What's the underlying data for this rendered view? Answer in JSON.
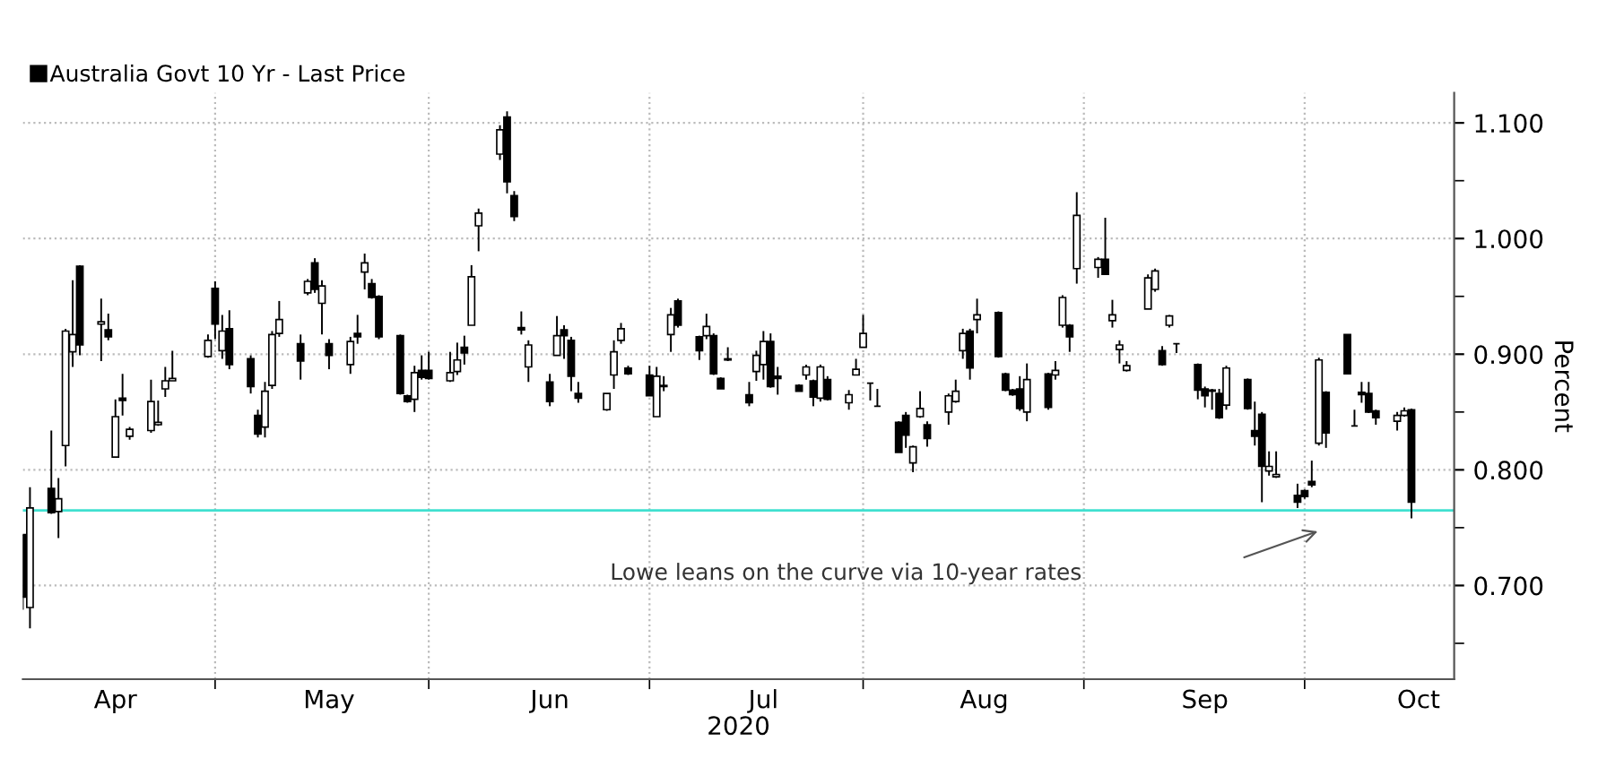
{
  "chart_data": {
    "type": "candlestick",
    "x": [
      "2020-03-19",
      "2020-03-20",
      "2020-03-23",
      "2020-03-24",
      "2020-03-25",
      "2020-03-26",
      "2020-03-27",
      "2020-03-30",
      "2020-03-31",
      "2020-04-01",
      "2020-04-02",
      "2020-04-03",
      "2020-04-06",
      "2020-04-07",
      "2020-04-08",
      "2020-04-09",
      "2020-04-14",
      "2020-04-15",
      "2020-04-16",
      "2020-04-17",
      "2020-04-20",
      "2020-04-21",
      "2020-04-22",
      "2020-04-23",
      "2020-04-24",
      "2020-04-27",
      "2020-04-28",
      "2020-04-29",
      "2020-04-30",
      "2020-05-01",
      "2020-05-04",
      "2020-05-05",
      "2020-05-06",
      "2020-05-07",
      "2020-05-08",
      "2020-05-11",
      "2020-05-12",
      "2020-05-13",
      "2020-05-14",
      "2020-05-15",
      "2020-05-18",
      "2020-05-19",
      "2020-05-20",
      "2020-05-21",
      "2020-05-22",
      "2020-05-25",
      "2020-05-26",
      "2020-05-27",
      "2020-05-28",
      "2020-05-29",
      "2020-06-01",
      "2020-06-02",
      "2020-06-03",
      "2020-06-04",
      "2020-06-05",
      "2020-06-09",
      "2020-06-10",
      "2020-06-11",
      "2020-06-12",
      "2020-06-15",
      "2020-06-16",
      "2020-06-17",
      "2020-06-18",
      "2020-06-19",
      "2020-06-22",
      "2020-06-23",
      "2020-06-24",
      "2020-06-25",
      "2020-06-26",
      "2020-06-29",
      "2020-06-30",
      "2020-07-01",
      "2020-07-02",
      "2020-07-03",
      "2020-07-06",
      "2020-07-07",
      "2020-07-08",
      "2020-07-09",
      "2020-07-10",
      "2020-07-13",
      "2020-07-14",
      "2020-07-15",
      "2020-07-16",
      "2020-07-17",
      "2020-07-20",
      "2020-07-21",
      "2020-07-22",
      "2020-07-23",
      "2020-07-24",
      "2020-07-27",
      "2020-07-28",
      "2020-07-29",
      "2020-07-30",
      "2020-07-31",
      "2020-08-03",
      "2020-08-04",
      "2020-08-05",
      "2020-08-06",
      "2020-08-07",
      "2020-08-10",
      "2020-08-11",
      "2020-08-12",
      "2020-08-13",
      "2020-08-14",
      "2020-08-17",
      "2020-08-18",
      "2020-08-19",
      "2020-08-20",
      "2020-08-21",
      "2020-08-24",
      "2020-08-25",
      "2020-08-26",
      "2020-08-27",
      "2020-08-28",
      "2020-08-31",
      "2020-09-01",
      "2020-09-02",
      "2020-09-03",
      "2020-09-04",
      "2020-09-07",
      "2020-09-08",
      "2020-09-09",
      "2020-09-10",
      "2020-09-11",
      "2020-09-14",
      "2020-09-15",
      "2020-09-16",
      "2020-09-17",
      "2020-09-18",
      "2020-09-21",
      "2020-09-22",
      "2020-09-23",
      "2020-09-24",
      "2020-09-25",
      "2020-09-28",
      "2020-09-29",
      "2020-09-30"
    ],
    "series": [
      {
        "name": "Australia Govt 10 Yr - Last Price",
        "color": "#000000",
        "ohlc": [
          [
            0.744,
            0.744,
            0.679,
            0.69
          ],
          [
            0.681,
            0.785,
            0.663,
            0.767
          ],
          [
            0.784,
            0.834,
            0.762,
            0.763
          ],
          [
            0.764,
            0.793,
            0.741,
            0.775
          ],
          [
            0.821,
            0.922,
            0.803,
            0.92
          ],
          [
            0.902,
            0.964,
            0.889,
            0.917
          ],
          [
            0.976,
            0.977,
            0.899,
            0.908
          ],
          [
            0.926,
            0.948,
            0.894,
            0.928
          ],
          [
            0.921,
            0.935,
            0.912,
            0.915
          ],
          [
            0.811,
            0.861,
            0.811,
            0.846
          ],
          [
            0.862,
            0.883,
            0.847,
            0.86
          ],
          [
            0.829,
            0.837,
            0.826,
            0.835
          ],
          [
            0.834,
            0.878,
            0.832,
            0.859
          ],
          [
            0.839,
            0.86,
            0.838,
            0.841
          ],
          [
            0.87,
            0.889,
            0.863,
            0.877
          ],
          [
            0.877,
            0.903,
            0.877,
            0.879
          ],
          [
            0.898,
            0.917,
            0.897,
            0.912
          ],
          [
            0.957,
            0.963,
            0.913,
            0.926
          ],
          [
            0.903,
            0.934,
            0.896,
            0.92
          ],
          [
            0.922,
            0.938,
            0.887,
            0.891
          ],
          [
            0.896,
            0.899,
            0.866,
            0.872
          ],
          [
            0.847,
            0.852,
            0.828,
            0.831
          ],
          [
            0.837,
            0.876,
            0.828,
            0.868
          ],
          [
            0.873,
            0.92,
            0.87,
            0.917
          ],
          [
            0.918,
            0.946,
            0.915,
            0.93
          ],
          [
            0.909,
            0.917,
            0.878,
            0.894
          ],
          [
            0.953,
            0.965,
            0.951,
            0.963
          ],
          [
            0.979,
            0.983,
            0.953,
            0.956
          ],
          [
            0.944,
            0.964,
            0.917,
            0.959
          ],
          [
            0.909,
            0.913,
            0.887,
            0.899
          ],
          [
            0.891,
            0.915,
            0.883,
            0.911
          ],
          [
            0.918,
            0.934,
            0.909,
            0.915
          ],
          [
            0.971,
            0.987,
            0.956,
            0.979
          ],
          [
            0.961,
            0.965,
            0.948,
            0.949
          ],
          [
            0.95,
            0.951,
            0.913,
            0.915
          ],
          [
            0.916,
            0.917,
            0.865,
            0.866
          ],
          [
            0.864,
            0.865,
            0.858,
            0.859
          ],
          [
            0.861,
            0.89,
            0.85,
            0.884
          ],
          [
            0.886,
            0.899,
            0.878,
            0.88
          ],
          [
            0.886,
            0.902,
            0.878,
            0.879
          ],
          [
            0.877,
            0.902,
            0.876,
            0.884
          ],
          [
            0.885,
            0.91,
            0.882,
            0.895
          ],
          [
            0.906,
            0.916,
            0.891,
            0.901
          ],
          [
            0.925,
            0.977,
            0.925,
            0.967
          ],
          [
            1.011,
            1.026,
            0.989,
            1.022
          ],
          [
            1.073,
            1.098,
            1.068,
            1.094
          ],
          [
            1.105,
            1.11,
            1.039,
            1.049
          ],
          [
            1.037,
            1.041,
            1.015,
            1.019
          ],
          [
            0.923,
            0.937,
            0.917,
            0.921
          ],
          [
            0.889,
            0.912,
            0.876,
            0.908
          ],
          [
            0.876,
            0.883,
            0.855,
            0.859
          ],
          [
            0.899,
            0.933,
            0.899,
            0.916
          ],
          [
            0.921,
            0.925,
            0.896,
            0.916
          ],
          [
            0.912,
            0.915,
            0.868,
            0.881
          ],
          [
            0.866,
            0.876,
            0.858,
            0.862
          ],
          [
            0.852,
            0.866,
            0.851,
            0.866
          ],
          [
            0.882,
            0.912,
            0.87,
            0.902
          ],
          [
            0.912,
            0.927,
            0.909,
            0.922
          ],
          [
            0.888,
            0.89,
            0.882,
            0.883
          ],
          [
            0.882,
            0.89,
            0.864,
            0.864
          ],
          [
            0.846,
            0.889,
            0.846,
            0.881
          ],
          [
            0.872,
            0.881,
            0.868,
            0.873
          ],
          [
            0.917,
            0.94,
            0.902,
            0.934
          ],
          [
            0.946,
            0.948,
            0.923,
            0.925
          ],
          [
            0.915,
            0.916,
            0.895,
            0.903
          ],
          [
            0.916,
            0.935,
            0.913,
            0.924
          ],
          [
            0.916,
            0.918,
            0.882,
            0.883
          ],
          [
            0.879,
            0.88,
            0.87,
            0.87
          ],
          [
            0.896,
            0.906,
            0.894,
            0.895
          ],
          [
            0.865,
            0.876,
            0.855,
            0.858
          ],
          [
            0.885,
            0.903,
            0.877,
            0.899
          ],
          [
            0.891,
            0.92,
            0.878,
            0.911
          ],
          [
            0.911,
            0.918,
            0.871,
            0.872
          ],
          [
            0.881,
            0.889,
            0.865,
            0.879
          ],
          [
            0.873,
            0.874,
            0.868,
            0.868
          ],
          [
            0.882,
            0.891,
            0.878,
            0.889
          ],
          [
            0.877,
            0.878,
            0.855,
            0.863
          ],
          [
            0.862,
            0.891,
            0.859,
            0.889
          ],
          [
            0.878,
            0.881,
            0.86,
            0.861
          ],
          [
            0.858,
            0.869,
            0.852,
            0.865
          ],
          [
            0.882,
            0.896,
            0.882,
            0.887
          ],
          [
            0.906,
            0.934,
            0.906,
            0.918
          ],
          [
            0.875,
            0.875,
            0.86,
            0.875
          ],
          [
            0.855,
            0.87,
            0.855,
            0.855
          ],
          [
            0.841,
            0.842,
            0.815,
            0.815
          ],
          [
            0.847,
            0.85,
            0.819,
            0.83
          ],
          [
            0.806,
            0.821,
            0.798,
            0.82
          ],
          [
            0.846,
            0.868,
            0.845,
            0.853
          ],
          [
            0.839,
            0.842,
            0.82,
            0.827
          ],
          [
            0.85,
            0.866,
            0.839,
            0.864
          ],
          [
            0.859,
            0.878,
            0.858,
            0.868
          ],
          [
            0.903,
            0.922,
            0.896,
            0.918
          ],
          [
            0.92,
            0.922,
            0.878,
            0.888
          ],
          [
            0.93,
            0.948,
            0.918,
            0.934
          ],
          [
            0.936,
            0.937,
            0.897,
            0.898
          ],
          [
            0.883,
            0.884,
            0.868,
            0.869
          ],
          [
            0.869,
            0.87,
            0.864,
            0.865
          ],
          [
            0.87,
            0.881,
            0.851,
            0.853
          ],
          [
            0.85,
            0.892,
            0.842,
            0.878
          ],
          [
            0.883,
            0.884,
            0.852,
            0.854
          ],
          [
            0.882,
            0.894,
            0.878,
            0.886
          ],
          [
            0.925,
            0.951,
            0.923,
            0.949
          ],
          [
            0.925,
            0.926,
            0.902,
            0.915
          ],
          [
            0.974,
            1.04,
            0.961,
            1.02
          ],
          [
            0.975,
            0.984,
            0.966,
            0.982
          ],
          [
            0.982,
            1.018,
            0.969,
            0.969
          ],
          [
            0.929,
            0.947,
            0.923,
            0.934
          ],
          [
            0.904,
            0.912,
            0.892,
            0.908
          ],
          [
            0.886,
            0.894,
            0.885,
            0.89
          ],
          [
            0.939,
            0.969,
            0.939,
            0.966
          ],
          [
            0.956,
            0.974,
            0.954,
            0.972
          ],
          [
            0.903,
            0.907,
            0.89,
            0.891
          ],
          [
            0.925,
            0.934,
            0.923,
            0.933
          ],
          [
            0.909,
            0.909,
            0.901,
            0.909
          ],
          [
            0.891,
            0.892,
            0.861,
            0.869
          ],
          [
            0.87,
            0.872,
            0.854,
            0.864
          ],
          [
            0.869,
            0.87,
            0.852,
            0.868
          ],
          [
            0.866,
            0.87,
            0.844,
            0.845
          ],
          [
            0.856,
            0.89,
            0.852,
            0.888
          ],
          [
            0.878,
            0.879,
            0.852,
            0.853
          ],
          [
            0.834,
            0.859,
            0.821,
            0.829
          ],
          [
            0.848,
            0.85,
            0.772,
            0.803
          ],
          [
            0.799,
            0.816,
            0.795,
            0.803
          ],
          [
            0.794,
            0.816,
            0.793,
            0.796
          ],
          [
            0.778,
            0.788,
            0.767,
            0.772
          ],
          [
            0.782,
            0.783,
            0.775,
            0.777
          ],
          [
            0.79,
            0.808,
            0.785,
            0.787
          ],
          [
            0.823,
            0.897,
            0.821,
            0.895
          ],
          [
            0.867,
            0.868,
            0.819,
            0.832
          ],
          [
            0.917,
            0.917,
            0.883,
            0.883
          ],
          [
            0.838,
            0.852,
            0.838,
            0.838
          ],
          [
            0.867,
            0.876,
            0.858,
            0.865
          ],
          [
            0.866,
            0.876,
            0.849,
            0.85
          ],
          [
            0.851,
            0.852,
            0.839,
            0.845
          ],
          [
            0.842,
            0.85,
            0.834,
            0.847
          ],
          [
            0.847,
            0.854,
            0.846,
            0.851
          ],
          [
            0.852,
            0.853,
            0.758,
            0.772
          ]
        ]
      }
    ],
    "xlim": [
      "2020-03-19",
      "2020-10-06"
    ],
    "xticks": [
      {
        "value": "2020-04-01",
        "label": "Apr"
      },
      {
        "value": "2020-05-01",
        "label": "May"
      },
      {
        "value": "2020-06-01",
        "label": "Jun"
      },
      {
        "value": "2020-07-01",
        "label": "Jul"
      },
      {
        "value": "2020-08-01",
        "label": "Aug"
      },
      {
        "value": "2020-09-01",
        "label": "Sep"
      },
      {
        "value": "2020-10-01",
        "label": "Oct"
      },
      {
        "value": "2020-04-15",
        "label": null
      },
      {
        "value": "2020-05-15",
        "label": null
      },
      {
        "value": "2020-06-15",
        "label": null
      },
      {
        "value": "2020-07-15",
        "label": null
      },
      {
        "value": "2020-08-15",
        "label": null
      },
      {
        "value": "2020-09-15",
        "label": null
      }
    ],
    "xlabel": "2020",
    "ylabel": "Percent",
    "ylim": [
      0.619,
      1.126
    ],
    "yticks": [
      {
        "value": 0.7,
        "label": "0.700"
      },
      {
        "value": 0.8,
        "label": "0.800"
      },
      {
        "value": 0.9,
        "label": "0.900"
      },
      {
        "value": 1.0,
        "label": "1.000"
      },
      {
        "value": 1.1,
        "label": "1.100"
      },
      {
        "value": 0.65,
        "label": null
      },
      {
        "value": 0.75,
        "label": null
      },
      {
        "value": 0.85,
        "label": null
      },
      {
        "value": 0.95,
        "label": null
      },
      {
        "value": 1.05,
        "label": null
      }
    ],
    "ref_lines": [
      {
        "axis": "y",
        "value": 0.765,
        "color": "#40e0d0"
      }
    ],
    "annotations": [
      "Lowe leans on the curve via 10-year rates"
    ],
    "grid": true,
    "legend": "top left"
  }
}
